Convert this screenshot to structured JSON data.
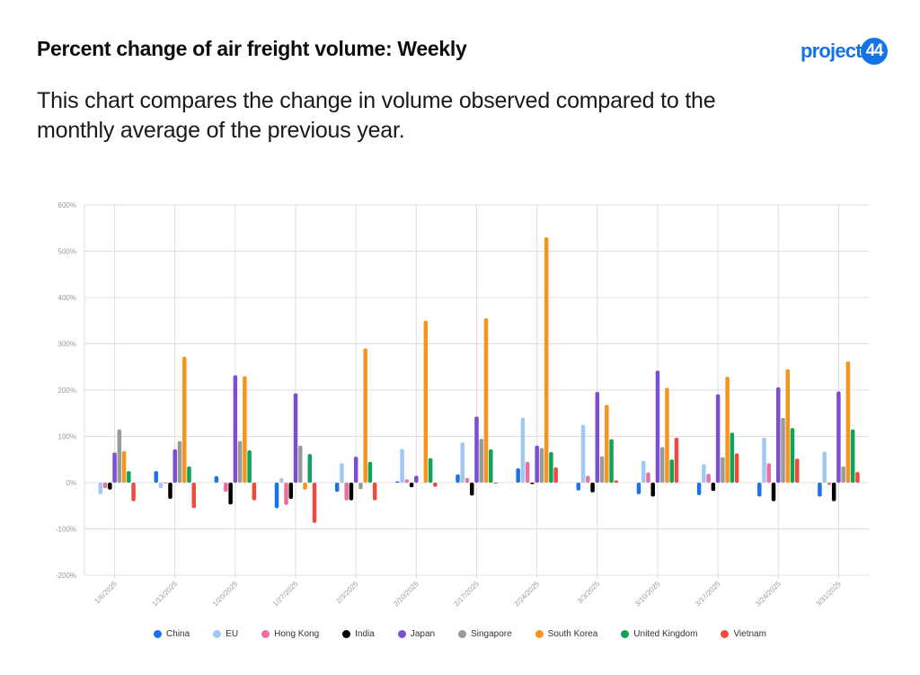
{
  "header": {
    "title": "Percent change of air freight volume: Weekly",
    "subtitle": "This chart compares the change in volume observed compared to the monthly average of the previous year.",
    "logo_text": "project",
    "logo_badge": "44",
    "brand_color": "#1673e6"
  },
  "chart_data": {
    "type": "bar",
    "title": "Percent change of air freight volume: Weekly",
    "xlabel": "",
    "ylabel": "",
    "ylim": [
      -200,
      600
    ],
    "yticks": [
      -200,
      -100,
      0,
      100,
      200,
      300,
      400,
      500,
      600
    ],
    "ytick_labels": [
      "-200%",
      "-100%",
      "0%",
      "100%",
      "200%",
      "300%",
      "400%",
      "500%",
      "600%"
    ],
    "grid": true,
    "legend_position": "bottom",
    "categories": [
      "1/6/2025",
      "1/13/2025",
      "1/20/2025",
      "1/27/2025",
      "2/3/2025",
      "2/10/2025",
      "2/17/2025",
      "2/24/2025",
      "3/3/2025",
      "3/10/2025",
      "3/17/2025",
      "3/24/2025",
      "3/31/2025"
    ],
    "series": [
      {
        "name": "China",
        "color": "#1a73e8",
        "values": [
          0,
          25,
          14,
          -55,
          -20,
          3,
          18,
          31,
          -17,
          -25,
          -27,
          -30,
          -30
        ]
      },
      {
        "name": "EU",
        "color": "#9fc8f5",
        "values": [
          -25,
          -12,
          0,
          10,
          42,
          73,
          87,
          140,
          125,
          47,
          40,
          97,
          67
        ]
      },
      {
        "name": "Hong Kong",
        "color": "#ec6fa1",
        "values": [
          -12,
          -2,
          -20,
          -48,
          -38,
          7,
          10,
          45,
          15,
          22,
          19,
          42,
          -5
        ]
      },
      {
        "name": "India",
        "color": "#000000",
        "values": [
          -15,
          -35,
          -47,
          -35,
          -38,
          -10,
          -28,
          -3,
          -21,
          -30,
          -18,
          -40,
          -40
        ]
      },
      {
        "name": "Japan",
        "color": "#7b4fcf",
        "values": [
          65,
          72,
          232,
          193,
          56,
          15,
          143,
          80,
          196,
          242,
          191,
          206,
          197
        ]
      },
      {
        "name": "Singapore",
        "color": "#9a9a9a",
        "values": [
          115,
          90,
          90,
          80,
          -14,
          0,
          95,
          75,
          57,
          77,
          55,
          140,
          35
        ]
      },
      {
        "name": "South Korea",
        "color": "#f7941d",
        "values": [
          68,
          272,
          230,
          -15,
          290,
          350,
          355,
          530,
          168,
          205,
          229,
          245,
          262
        ]
      },
      {
        "name": "United Kingdom",
        "color": "#0ea35a",
        "values": [
          25,
          35,
          70,
          62,
          45,
          53,
          72,
          66,
          94,
          50,
          108,
          118,
          115
        ]
      },
      {
        "name": "Vietnam",
        "color": "#ef4a3c",
        "values": [
          -40,
          -55,
          -38,
          -87,
          -38,
          -9,
          -1,
          33,
          5,
          97,
          63,
          52,
          23
        ]
      }
    ]
  }
}
